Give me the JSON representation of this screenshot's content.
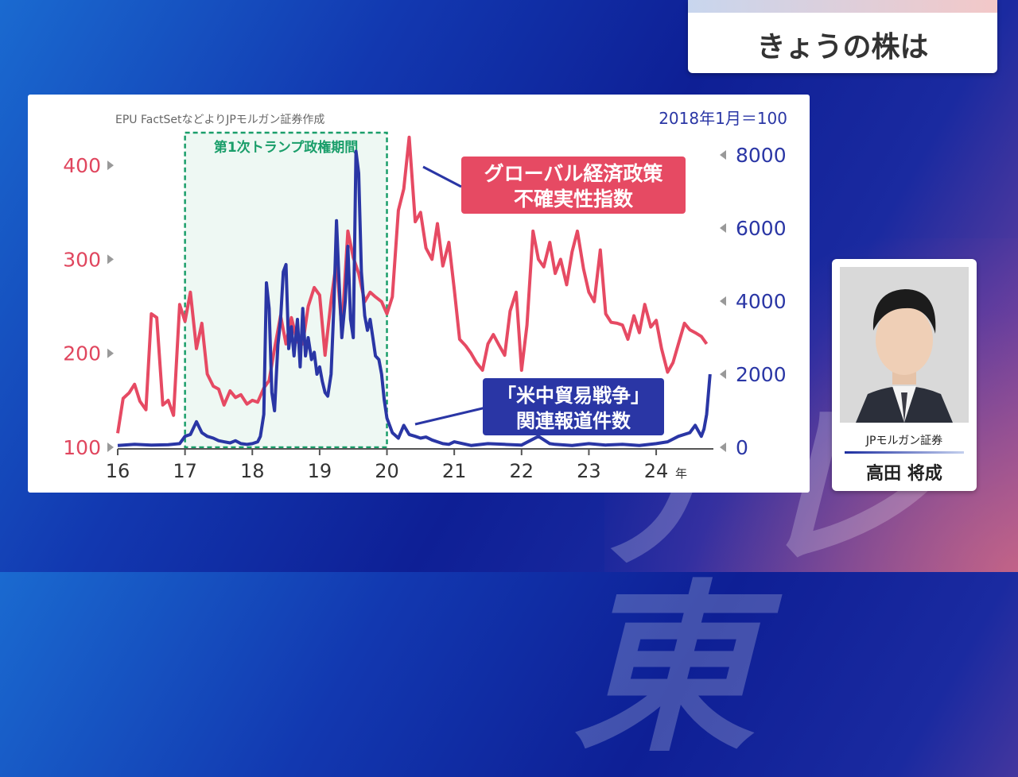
{
  "header": {
    "title": "きょうの株は"
  },
  "guest": {
    "org": "JPモルガン証券",
    "name": "高田 将成"
  },
  "chart_data": {
    "type": "line",
    "source": "EPU FactSetなどよりJPモルガン証券作成",
    "right_note": "2018年1月＝100",
    "x_ticks": [
      "16",
      "17",
      "18",
      "19",
      "20",
      "21",
      "22",
      "23",
      "24"
    ],
    "x_unit": "年",
    "xlim": [
      2016,
      2024.85
    ],
    "left_axis": {
      "ticks": [
        100,
        200,
        300,
        400
      ],
      "ylim": [
        100,
        450
      ],
      "color": "#e0465e"
    },
    "right_axis": {
      "ticks": [
        0,
        2000,
        4000,
        6000,
        8000
      ],
      "ylim": [
        0,
        9000
      ],
      "color": "#2a36a5"
    },
    "shaded_period": {
      "label": "第1次トランプ政権期間",
      "start": 2017.0,
      "end": 2020.0
    },
    "series": [
      {
        "name": "グローバル経済政策不確実性指数",
        "axis": "left",
        "color": "#e64a63",
        "x": [
          2016.0,
          2016.08,
          2016.17,
          2016.25,
          2016.33,
          2016.42,
          2016.5,
          2016.58,
          2016.67,
          2016.75,
          2016.83,
          2016.92,
          2017.0,
          2017.08,
          2017.17,
          2017.25,
          2017.33,
          2017.42,
          2017.5,
          2017.58,
          2017.67,
          2017.75,
          2017.83,
          2017.92,
          2018.0,
          2018.08,
          2018.17,
          2018.25,
          2018.33,
          2018.42,
          2018.5,
          2018.58,
          2018.67,
          2018.75,
          2018.83,
          2018.92,
          2019.0,
          2019.08,
          2019.17,
          2019.25,
          2019.33,
          2019.42,
          2019.5,
          2019.58,
          2019.67,
          2019.75,
          2019.83,
          2019.92,
          2020.0,
          2020.08,
          2020.17,
          2020.25,
          2020.33,
          2020.42,
          2020.5,
          2020.58,
          2020.67,
          2020.75,
          2020.83,
          2020.92,
          2021.0,
          2021.08,
          2021.17,
          2021.25,
          2021.33,
          2021.42,
          2021.5,
          2021.58,
          2021.67,
          2021.75,
          2021.83,
          2021.92,
          2022.0,
          2022.08,
          2022.17,
          2022.25,
          2022.33,
          2022.42,
          2022.5,
          2022.58,
          2022.67,
          2022.75,
          2022.83,
          2022.92,
          2023.0,
          2023.08,
          2023.17,
          2023.25,
          2023.33,
          2023.42,
          2023.5,
          2023.58,
          2023.67,
          2023.75,
          2023.83,
          2023.92,
          2024.0,
          2024.08,
          2024.17,
          2024.25,
          2024.33,
          2024.42,
          2024.5,
          2024.58,
          2024.67,
          2024.75
        ],
        "values": [
          115,
          152,
          158,
          167,
          149,
          140,
          242,
          238,
          145,
          150,
          134,
          252,
          234,
          265,
          205,
          232,
          178,
          165,
          162,
          145,
          160,
          153,
          156,
          146,
          150,
          148,
          163,
          171,
          205,
          240,
          210,
          238,
          212,
          210,
          250,
          270,
          262,
          198,
          256,
          298,
          225,
          330,
          302,
          285,
          255,
          265,
          260,
          255,
          242,
          260,
          352,
          375,
          430,
          340,
          350,
          312,
          300,
          338,
          293,
          318,
          268,
          215,
          208,
          200,
          190,
          182,
          210,
          220,
          208,
          198,
          245,
          265,
          182,
          230,
          330,
          300,
          292,
          318,
          285,
          300,
          273,
          308,
          330,
          290,
          265,
          255,
          310,
          242,
          233,
          232,
          230,
          215,
          240,
          222,
          252,
          228,
          235,
          205,
          180,
          190,
          210,
          232,
          225,
          222,
          218,
          210
        ]
      },
      {
        "name": "「米中貿易戦争」関連報道件数",
        "axis": "right",
        "color": "#2a36a5",
        "x": [
          2016.0,
          2016.25,
          2016.5,
          2016.75,
          2016.92,
          2017.0,
          2017.08,
          2017.17,
          2017.25,
          2017.33,
          2017.42,
          2017.5,
          2017.58,
          2017.67,
          2017.75,
          2017.83,
          2017.92,
          2018.0,
          2018.08,
          2018.12,
          2018.17,
          2018.21,
          2018.25,
          2018.29,
          2018.33,
          2018.38,
          2018.42,
          2018.46,
          2018.5,
          2018.54,
          2018.58,
          2018.62,
          2018.67,
          2018.71,
          2018.75,
          2018.79,
          2018.83,
          2018.88,
          2018.92,
          2018.96,
          2019.0,
          2019.04,
          2019.08,
          2019.12,
          2019.17,
          2019.21,
          2019.25,
          2019.29,
          2019.33,
          2019.38,
          2019.42,
          2019.46,
          2019.5,
          2019.54,
          2019.58,
          2019.62,
          2019.67,
          2019.71,
          2019.75,
          2019.79,
          2019.83,
          2019.88,
          2019.92,
          2019.96,
          2020.0,
          2020.08,
          2020.17,
          2020.25,
          2020.33,
          2020.42,
          2020.5,
          2020.58,
          2020.67,
          2020.75,
          2020.83,
          2020.92,
          2021.0,
          2021.25,
          2021.5,
          2021.75,
          2022.0,
          2022.25,
          2022.42,
          2022.5,
          2022.75,
          2023.0,
          2023.25,
          2023.5,
          2023.75,
          2024.0,
          2024.17,
          2024.33,
          2024.5,
          2024.58,
          2024.67,
          2024.71,
          2024.75,
          2024.8
        ],
        "values": [
          50,
          80,
          60,
          70,
          100,
          300,
          350,
          700,
          400,
          300,
          250,
          180,
          150,
          120,
          180,
          100,
          80,
          100,
          150,
          300,
          900,
          4500,
          3800,
          1500,
          1000,
          2800,
          3500,
          4800,
          5000,
          2700,
          3300,
          2500,
          3500,
          2200,
          3800,
          2500,
          3000,
          2400,
          2600,
          2000,
          2200,
          1800,
          1500,
          1400,
          2000,
          3800,
          6200,
          4500,
          3000,
          4000,
          5500,
          3500,
          3000,
          8100,
          7500,
          4800,
          3600,
          3200,
          3500,
          3000,
          2500,
          2400,
          2000,
          1300,
          800,
          400,
          250,
          600,
          350,
          300,
          250,
          280,
          200,
          150,
          100,
          80,
          150,
          50,
          100,
          80,
          60,
          300,
          100,
          80,
          50,
          100,
          60,
          80,
          50,
          100,
          150,
          300,
          400,
          600,
          300,
          500,
          900,
          2000
        ]
      }
    ]
  }
}
